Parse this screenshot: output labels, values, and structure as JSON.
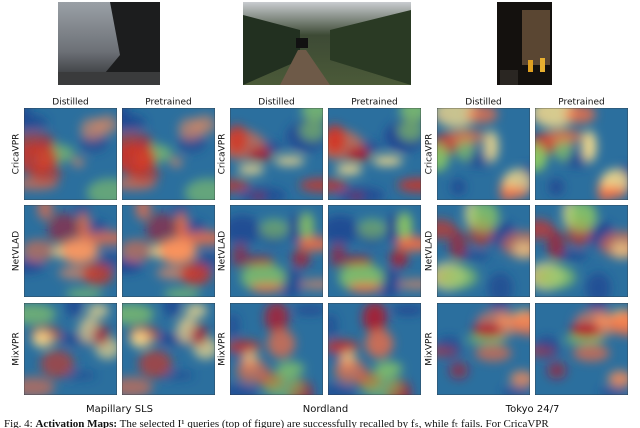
{
  "figure": {
    "datasets": [
      {
        "name": "Mapillary SLS",
        "columns": [
          "Distilled",
          "Pretrained"
        ],
        "rows": [
          "CricaVPR",
          "NetVLAD",
          "MixVPR"
        ]
      },
      {
        "name": "Nordland",
        "columns": [
          "Distilled",
          "Pretrained"
        ],
        "rows": [
          "CricaVPR",
          "NetVLAD",
          "MixVPR"
        ]
      },
      {
        "name": "Tokyo 24/7",
        "columns": [
          "Distilled",
          "Pretrained"
        ],
        "rows": [
          "CricaVPR",
          "NetVLAD",
          "MixVPR"
        ]
      }
    ],
    "caption": {
      "label": "Fig. 4:",
      "bold": "Activation Maps:",
      "text": "The selected I¹ queries (top of figure) are successfully recalled by fₛ, while fₜ fails. For CricaVPR"
    }
  }
}
